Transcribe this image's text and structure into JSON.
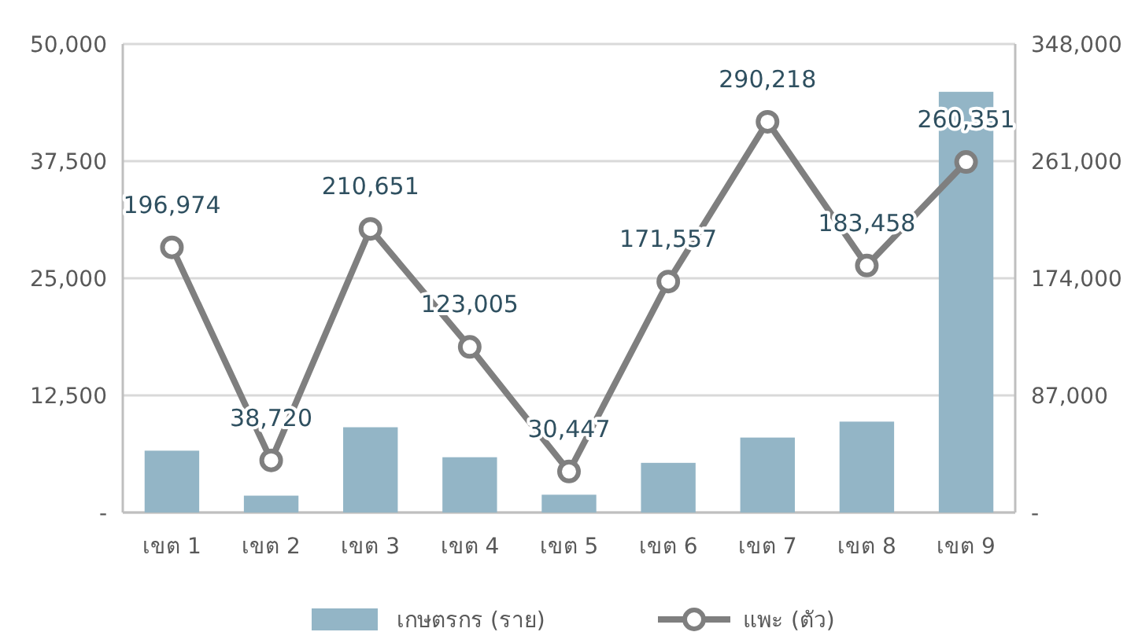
{
  "chart_data": {
    "type": "bar",
    "categories": [
      "เขต 1",
      "เขต 2",
      "เขต 3",
      "เขต 4",
      "เขต 5",
      "เขต 6",
      "เขต 7",
      "เขต 8",
      "เขต 9"
    ],
    "series": [
      {
        "name": "เกษตรกร (ราย)",
        "color": "#93b5c6",
        "values": [
          6600,
          1800,
          9100,
          5900,
          1900,
          5300,
          8000,
          9700,
          44900
        ]
      },
      {
        "name": "แพะ (ตัว)",
        "type": "line",
        "axis": "y2",
        "color": "#7f7f7f",
        "marker": "circle",
        "value_labels": [
          "196,974",
          "38,720",
          "210,651",
          "123,005",
          "30,447",
          "171,557",
          "290,218",
          "183,458",
          "260,351"
        ],
        "values": [
          196974,
          38720,
          210651,
          123005,
          30447,
          171557,
          290218,
          183458,
          260351
        ]
      }
    ],
    "ylim": [
      0,
      50000
    ],
    "yticks": [
      {
        "value": 0,
        "label": "-"
      },
      {
        "value": 12500,
        "label": "12,500"
      },
      {
        "value": 25000,
        "label": "25,000"
      },
      {
        "value": 37500,
        "label": "37,500"
      },
      {
        "value": 50000,
        "label": "50,000"
      }
    ],
    "y2lim": [
      0,
      348000
    ],
    "y2ticks": [
      {
        "value": 0,
        "label": "-"
      },
      {
        "value": 87000,
        "label": "87,000"
      },
      {
        "value": 174000,
        "label": "174,000"
      },
      {
        "value": 261000,
        "label": "261,000"
      },
      {
        "value": 348000,
        "label": "348,000"
      }
    ],
    "grid": "y",
    "legend": "bottom"
  }
}
